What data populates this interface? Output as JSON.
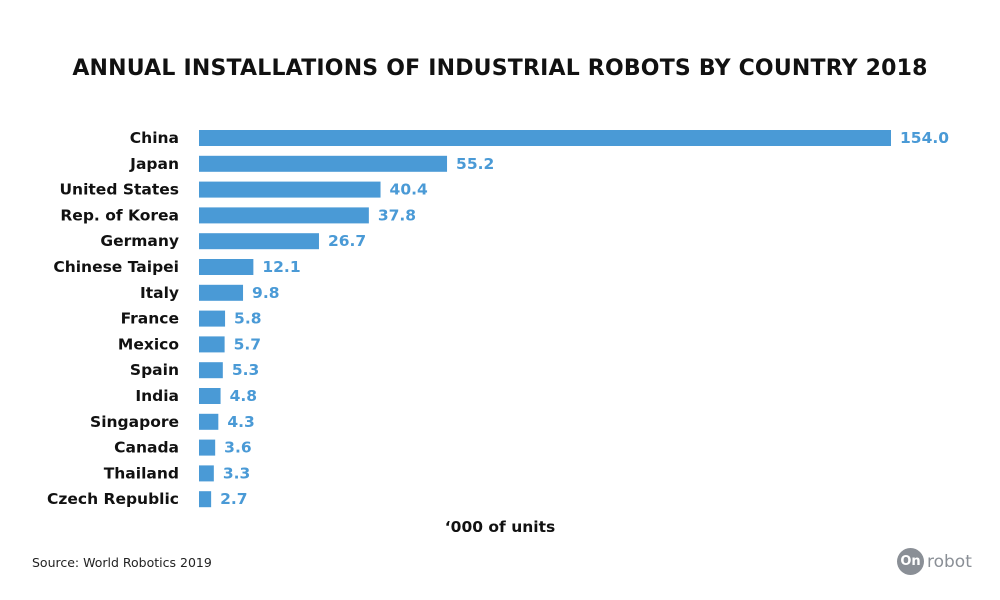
{
  "colors": {
    "bar": "#4a9ad6",
    "value_text": "#4a9ad6",
    "text": "#111111",
    "logo": "#8a8f96"
  },
  "chart_data": {
    "type": "bar",
    "orientation": "horizontal",
    "title": "ANNUAL INSTALLATIONS OF INDUSTRIAL ROBOTS BY COUNTRY 2018",
    "xlabel": "‘000 of units",
    "ylabel": "",
    "xlim": [
      0,
      154
    ],
    "grid": false,
    "categories": [
      "China",
      "Japan",
      "United States",
      "Rep. of Korea",
      "Germany",
      "Chinese Taipei",
      "Italy",
      "France",
      "Mexico",
      "Spain",
      "India",
      "Singapore",
      "Canada",
      "Thailand",
      "Czech Republic"
    ],
    "values": [
      154.0,
      55.2,
      40.4,
      37.8,
      26.7,
      12.1,
      9.8,
      5.8,
      5.7,
      5.3,
      4.8,
      4.3,
      3.6,
      3.3,
      2.7
    ],
    "value_labels": [
      "154.0",
      "55.2",
      "40.4",
      "37.8",
      "26.7",
      "12.1",
      "9.8",
      "5.8",
      "5.7",
      "5.3",
      "4.8",
      "4.3",
      "3.6",
      "3.3",
      "2.7"
    ]
  },
  "footer": {
    "source": "Source: World Robotics 2019"
  },
  "brand": {
    "icon_text": "On",
    "text": "robot"
  }
}
